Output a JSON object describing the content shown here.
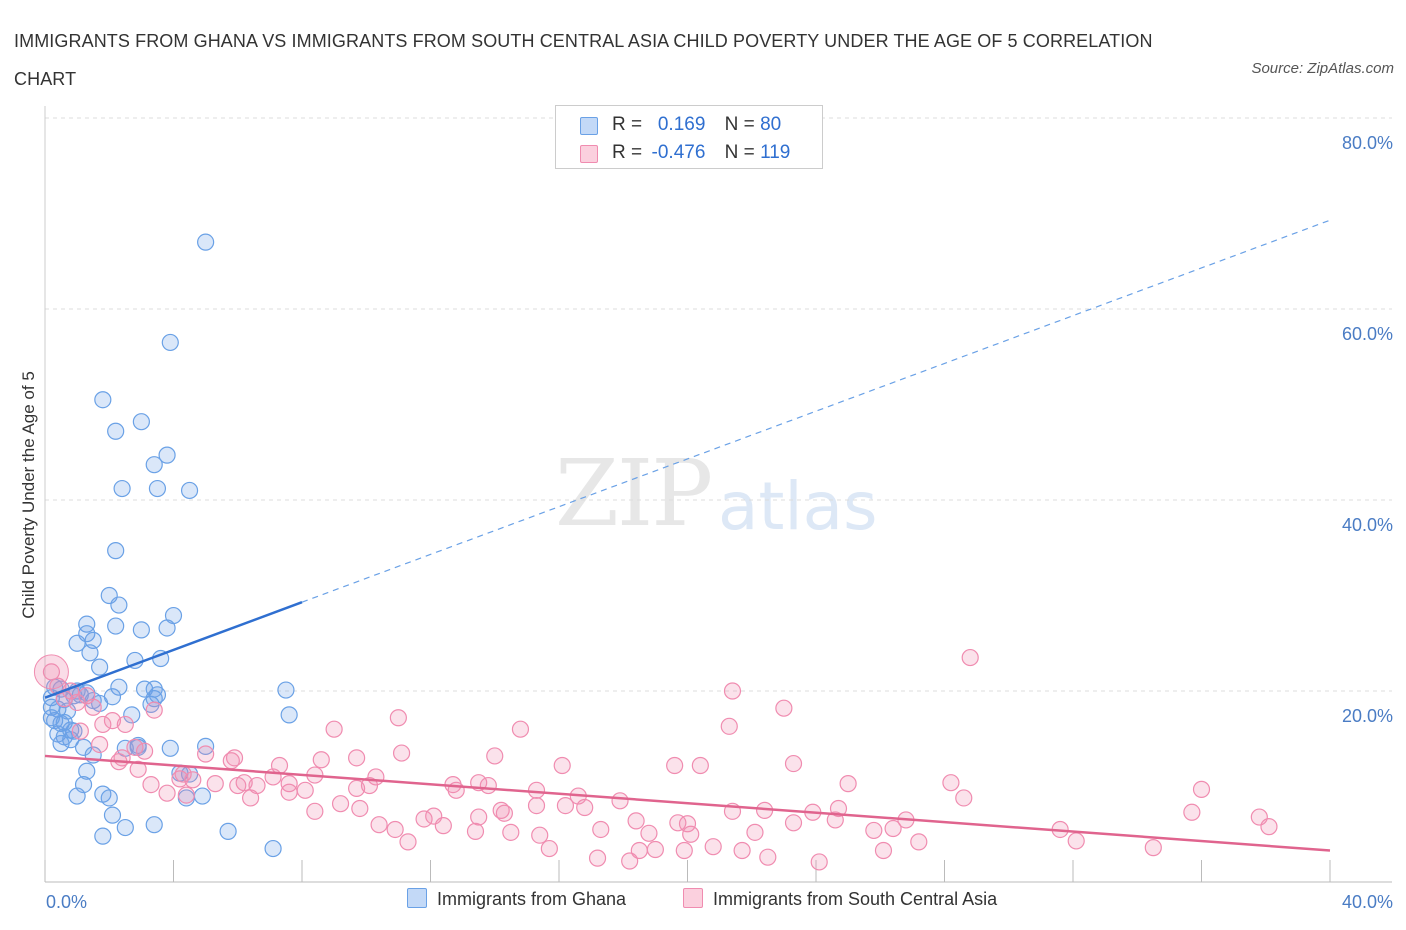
{
  "title": "IMMIGRANTS FROM GHANA VS IMMIGRANTS FROM SOUTH CENTRAL ASIA CHILD POVERTY UNDER THE AGE OF 5 CORRELATION CHART",
  "source": "Source: ZipAtlas.com",
  "watermark": {
    "zip": "ZIP",
    "atlas": "atlas"
  },
  "legend": {
    "row1": {
      "r_label": "R =",
      "r_value": "0.169",
      "n_label": "N =",
      "n_value": "80"
    },
    "row2": {
      "r_label": "R =",
      "r_value": "-0.476",
      "n_label": "N =",
      "n_value": "119"
    }
  },
  "chart_data": {
    "type": "scatter",
    "title": "IMMIGRANTS FROM GHANA VS IMMIGRANTS FROM SOUTH CENTRAL ASIA CHILD POVERTY UNDER THE AGE OF 5 CORRELATION CHART",
    "xlabel": "",
    "ylabel": "Child Poverty Under the Age of 5",
    "xlim": [
      0,
      40
    ],
    "ylim": [
      0,
      80
    ],
    "x_tick_labels": [
      "0.0%",
      "40.0%"
    ],
    "y_ticks": [
      20,
      40,
      60,
      80
    ],
    "y_tick_labels": [
      "20.0%",
      "40.0%",
      "60.0%",
      "80.0%"
    ],
    "grid": "horizontal dashed",
    "legend_position": "top-center",
    "colors": {
      "ghana": "#6aa1e6",
      "ghana_line": "#2f6fd0",
      "sca": "#f08cb0",
      "sca_line": "#e0648e"
    },
    "series": [
      {
        "name": "Immigrants from Ghana",
        "R": 0.169,
        "N": 80,
        "trend": {
          "solid": [
            [
              0,
              19.3
            ],
            [
              8,
              29.3
            ]
          ],
          "dashed": [
            [
              8,
              29.3
            ],
            [
              40,
              69.3
            ]
          ]
        },
        "points": [
          [
            5,
            67
          ],
          [
            3.9,
            56.5
          ],
          [
            1.8,
            50.5
          ],
          [
            3,
            48.2
          ],
          [
            2.2,
            47.2
          ],
          [
            3.8,
            44.7
          ],
          [
            3.4,
            43.7
          ],
          [
            2.4,
            41.2
          ],
          [
            3.5,
            41.2
          ],
          [
            4.5,
            41
          ],
          [
            2.2,
            34.7
          ],
          [
            2,
            30
          ],
          [
            2.3,
            29
          ],
          [
            4,
            27.9
          ],
          [
            1.3,
            27
          ],
          [
            2.2,
            26.8
          ],
          [
            3,
            26.4
          ],
          [
            3.8,
            26.6
          ],
          [
            1.3,
            26
          ],
          [
            1.5,
            25.3
          ],
          [
            1,
            25
          ],
          [
            1.4,
            24
          ],
          [
            2.8,
            23.2
          ],
          [
            3.6,
            23.4
          ],
          [
            1.7,
            22.5
          ],
          [
            0.3,
            20.4
          ],
          [
            0.5,
            20.2
          ],
          [
            1,
            20
          ],
          [
            1.3,
            19.8
          ],
          [
            2.3,
            20.4
          ],
          [
            3.1,
            20.2
          ],
          [
            3.4,
            20.2
          ],
          [
            3.5,
            19.6
          ],
          [
            7.5,
            20.1
          ],
          [
            0.2,
            19.3
          ],
          [
            0.6,
            19.1
          ],
          [
            0.9,
            19.5
          ],
          [
            1.5,
            19
          ],
          [
            1.7,
            18.7
          ],
          [
            2.1,
            19.4
          ],
          [
            0.2,
            18.3
          ],
          [
            0.4,
            18.1
          ],
          [
            0.7,
            17.9
          ],
          [
            3.3,
            18.6
          ],
          [
            2.7,
            17.5
          ],
          [
            7.6,
            17.5
          ],
          [
            0.3,
            16.9
          ],
          [
            0.6,
            16.7
          ],
          [
            0.9,
            15.8
          ],
          [
            0.4,
            15.5
          ],
          [
            0.6,
            15.2
          ],
          [
            0.8,
            14.9
          ],
          [
            0.5,
            14.5
          ],
          [
            1.2,
            14.1
          ],
          [
            2.5,
            14
          ],
          [
            2.9,
            14.3
          ],
          [
            3.9,
            14
          ],
          [
            5,
            14.2
          ],
          [
            1.5,
            13.3
          ],
          [
            1.3,
            11.6
          ],
          [
            4.2,
            11.4
          ],
          [
            1.2,
            10.2
          ],
          [
            1.8,
            9.2
          ],
          [
            2,
            8.8
          ],
          [
            4.4,
            8.8
          ],
          [
            1,
            9
          ],
          [
            4.9,
            9
          ],
          [
            2.1,
            7
          ],
          [
            2.5,
            5.7
          ],
          [
            3.4,
            6
          ],
          [
            1.8,
            4.8
          ],
          [
            5.7,
            5.3
          ],
          [
            7.1,
            3.5
          ],
          [
            0.8,
            15.9
          ],
          [
            0.5,
            16.6
          ],
          [
            2.9,
            14.1
          ],
          [
            3.4,
            19.2
          ],
          [
            4.5,
            11.3
          ],
          [
            1.1,
            19.6
          ],
          [
            0.2,
            17.2
          ]
        ]
      },
      {
        "name": "Immigrants from South Central Asia",
        "R": -0.476,
        "N": 119,
        "trend": {
          "solid": [
            [
              0,
              13.2
            ],
            [
              40,
              3.3
            ]
          ]
        },
        "points": [
          [
            0.2,
            22
          ],
          [
            28.8,
            23.5
          ],
          [
            21.4,
            20
          ],
          [
            23,
            18.2
          ],
          [
            11,
            17.2
          ],
          [
            0.4,
            20.5
          ],
          [
            0.8,
            20
          ],
          [
            1.3,
            19.5
          ],
          [
            0.6,
            19.2
          ],
          [
            1,
            18.8
          ],
          [
            1.5,
            18.3
          ],
          [
            2.5,
            16.5
          ],
          [
            3.4,
            18
          ],
          [
            9,
            16
          ],
          [
            14.8,
            16
          ],
          [
            21.3,
            16.3
          ],
          [
            1.1,
            15.8
          ],
          [
            2.1,
            16.9
          ],
          [
            1.8,
            16.5
          ],
          [
            11.1,
            13.5
          ],
          [
            1.7,
            14.4
          ],
          [
            2.8,
            14.1
          ],
          [
            3.1,
            13.7
          ],
          [
            5,
            13.4
          ],
          [
            5.8,
            12.7
          ],
          [
            8.6,
            12.8
          ],
          [
            9.7,
            13
          ],
          [
            14,
            13.2
          ],
          [
            16.1,
            12.2
          ],
          [
            19.6,
            12.2
          ],
          [
            20.4,
            12.2
          ],
          [
            23.3,
            12.4
          ],
          [
            2.3,
            12.6
          ],
          [
            2.9,
            11.8
          ],
          [
            4.3,
            11.3
          ],
          [
            6.2,
            10.4
          ],
          [
            7.1,
            11
          ],
          [
            8.4,
            11.2
          ],
          [
            10.3,
            11
          ],
          [
            4.6,
            10.7
          ],
          [
            5.3,
            10.3
          ],
          [
            6,
            10.1
          ],
          [
            6.6,
            10.1
          ],
          [
            7.6,
            10.3
          ],
          [
            10.1,
            10.1
          ],
          [
            13.5,
            10.4
          ],
          [
            3.8,
            9.3
          ],
          [
            4.4,
            9.1
          ],
          [
            6.4,
            8.8
          ],
          [
            7.6,
            9.4
          ],
          [
            8.1,
            9.6
          ],
          [
            9.7,
            9.8
          ],
          [
            12.8,
            9.6
          ],
          [
            13.8,
            10.1
          ],
          [
            15.3,
            9.6
          ],
          [
            17.9,
            8.5
          ],
          [
            25,
            10.3
          ],
          [
            28.2,
            10.4
          ],
          [
            28.6,
            8.8
          ],
          [
            16.2,
            8
          ],
          [
            14.2,
            7.5
          ],
          [
            14.3,
            7.2
          ],
          [
            11.8,
            6.6
          ],
          [
            12.1,
            6.9
          ],
          [
            13.5,
            6.8
          ],
          [
            9.8,
            7.7
          ],
          [
            8.4,
            7.4
          ],
          [
            16.6,
            9
          ],
          [
            15.3,
            8
          ],
          [
            21.4,
            7.4
          ],
          [
            22.4,
            7.5
          ],
          [
            23.9,
            7.3
          ],
          [
            24.7,
            7.7
          ],
          [
            19.7,
            6.2
          ],
          [
            23.3,
            6.2
          ],
          [
            24.6,
            6.5
          ],
          [
            26.8,
            6.5
          ],
          [
            31.6,
            5.5
          ],
          [
            35.7,
            7.3
          ],
          [
            37.8,
            6.8
          ],
          [
            36,
            9.7
          ],
          [
            10.4,
            6
          ],
          [
            10.9,
            5.5
          ],
          [
            12.4,
            5.9
          ],
          [
            13.4,
            5.3
          ],
          [
            14.5,
            5.2
          ],
          [
            15.4,
            4.9
          ],
          [
            17.3,
            5.5
          ],
          [
            18.8,
            5.1
          ],
          [
            20.1,
            5
          ],
          [
            22.1,
            5.2
          ],
          [
            25.8,
            5.4
          ],
          [
            27.2,
            4.2
          ],
          [
            32.1,
            4.3
          ],
          [
            11.3,
            4.2
          ],
          [
            15.7,
            3.5
          ],
          [
            17.2,
            2.5
          ],
          [
            18.5,
            3.3
          ],
          [
            19,
            3.4
          ],
          [
            19.9,
            3.3
          ],
          [
            20.8,
            3.7
          ],
          [
            21.7,
            3.3
          ],
          [
            22.5,
            2.6
          ],
          [
            24.1,
            2.1
          ],
          [
            26.1,
            3.3
          ],
          [
            18.2,
            2.2
          ],
          [
            34.5,
            3.6
          ],
          [
            38.1,
            5.8
          ],
          [
            3.3,
            10.2
          ],
          [
            5.9,
            13
          ],
          [
            7.3,
            12.2
          ],
          [
            4.2,
            10.8
          ],
          [
            2.4,
            13
          ],
          [
            12.7,
            10.2
          ],
          [
            18.4,
            6.4
          ],
          [
            16.8,
            7.8
          ],
          [
            20,
            6.1
          ],
          [
            26.4,
            5.6
          ],
          [
            9.2,
            8.2
          ]
        ]
      }
    ]
  },
  "bottom_legend": [
    {
      "label": "Immigrants from Ghana"
    },
    {
      "label": "Immigrants from South Central Asia"
    }
  ]
}
